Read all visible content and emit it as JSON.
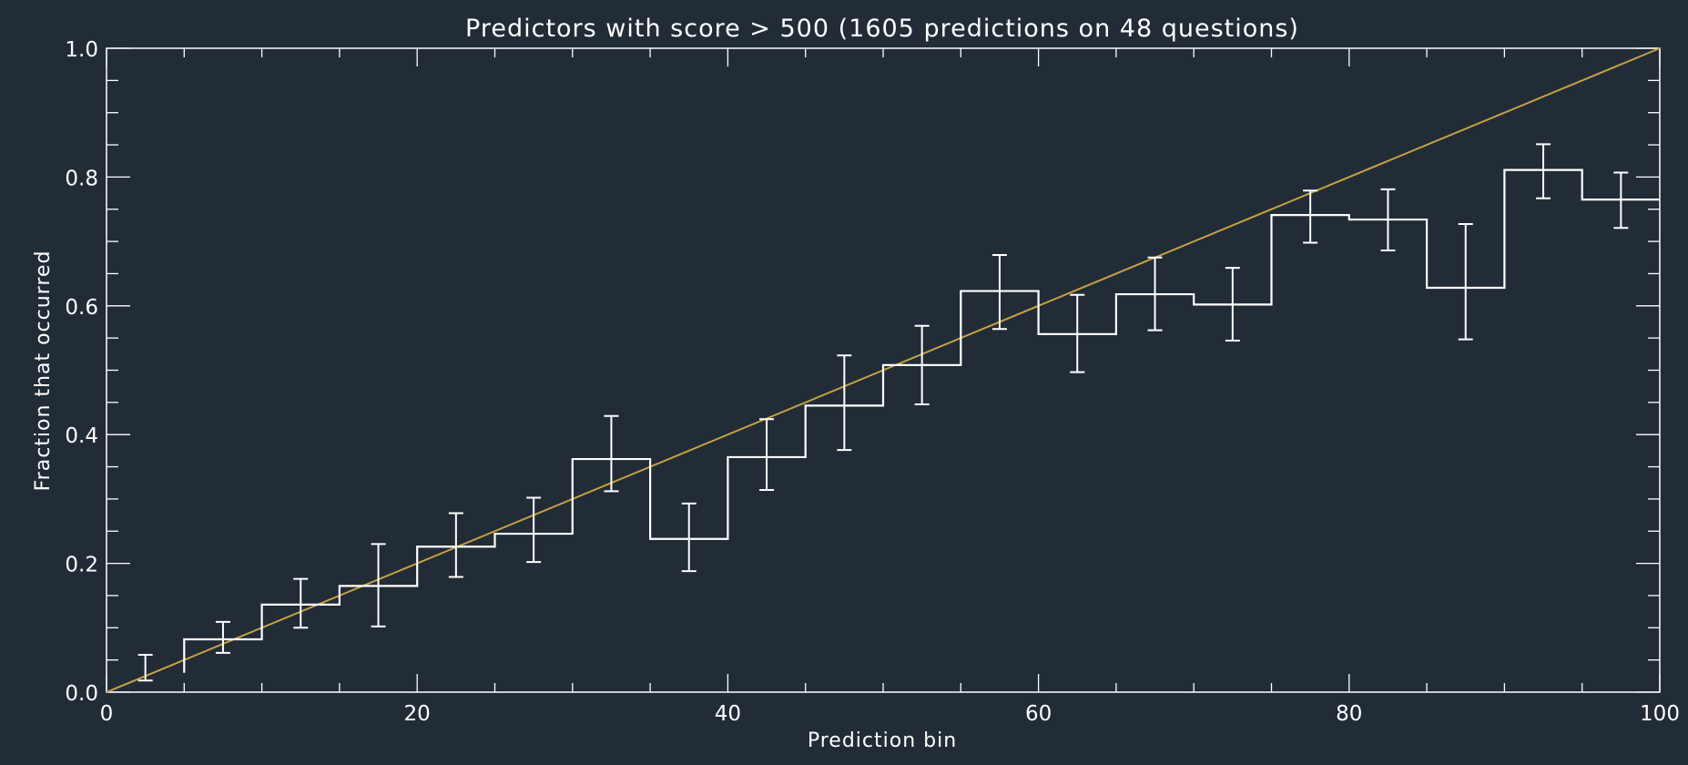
{
  "chart_data": {
    "type": "line",
    "title": "Predictors with score > 500 (1605 predictions on  48 questions)",
    "xlabel": "Prediction bin",
    "ylabel": "Fraction that occurred",
    "xlim": [
      0,
      100
    ],
    "ylim": [
      0,
      1
    ],
    "x_major_ticks": [
      0,
      20,
      40,
      60,
      80,
      100
    ],
    "x_minor_step": 5,
    "y_major_ticks": [
      0.0,
      0.2,
      0.4,
      0.6,
      0.8,
      1.0
    ],
    "y_minor_step": 0.05,
    "x_tick_labels": [
      "0",
      "20",
      "40",
      "60",
      "80",
      "100"
    ],
    "y_tick_labels": [
      "0.0",
      "0.2",
      "0.4",
      "0.6",
      "0.8",
      "1.0"
    ],
    "grid": false,
    "series": [
      {
        "style": "histogram-step",
        "bin_edges": [
          0,
          5,
          10,
          15,
          20,
          25,
          30,
          35,
          40,
          45,
          50,
          55,
          60,
          65,
          70,
          75,
          80,
          85,
          90,
          95,
          100
        ],
        "bin_centers": [
          2.5,
          7.5,
          12.5,
          17.5,
          22.5,
          27.5,
          32.5,
          37.5,
          42.5,
          47.5,
          52.5,
          57.5,
          62.5,
          67.5,
          72.5,
          77.5,
          82.5,
          87.5,
          92.5,
          97.5
        ],
        "values": [
          0.03,
          0.082,
          0.136,
          0.165,
          0.226,
          0.246,
          0.362,
          0.238,
          0.365,
          0.445,
          0.508,
          0.623,
          0.556,
          0.618,
          0.602,
          0.741,
          0.734,
          0.628,
          0.811,
          0.765
        ],
        "error_low": [
          0.018,
          0.061,
          0.1,
          0.102,
          0.179,
          0.202,
          0.312,
          0.188,
          0.314,
          0.376,
          0.447,
          0.564,
          0.497,
          0.562,
          0.546,
          0.698,
          0.686,
          0.548,
          0.767,
          0.721
        ],
        "error_high": [
          0.058,
          0.109,
          0.176,
          0.23,
          0.278,
          0.302,
          0.429,
          0.293,
          0.424,
          0.523,
          0.569,
          0.679,
          0.617,
          0.675,
          0.659,
          0.779,
          0.781,
          0.727,
          0.851,
          0.807
        ]
      },
      {
        "style": "reference-diagonal",
        "x": [
          0,
          100
        ],
        "y": [
          0,
          1
        ],
        "color": "#c7a043"
      }
    ]
  }
}
